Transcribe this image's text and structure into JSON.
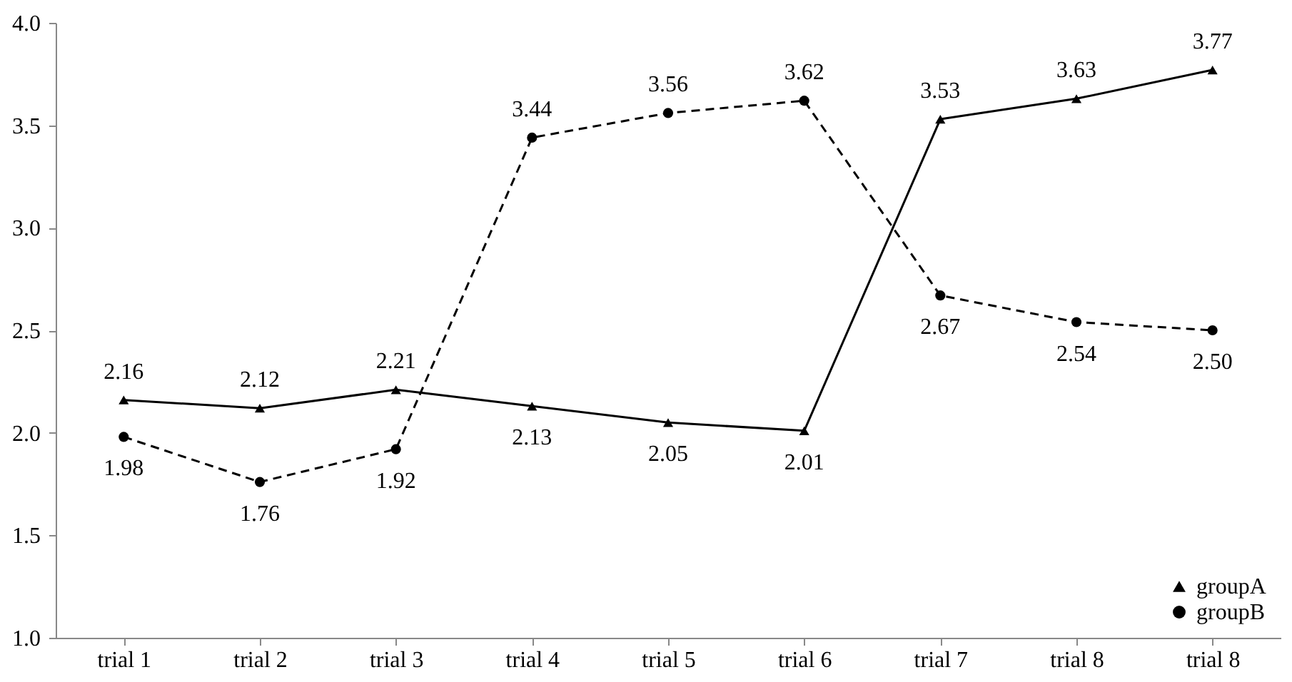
{
  "chart_data": {
    "type": "line",
    "categories": [
      "trial 1",
      "trial 2",
      "trial 3",
      "trial 4",
      "trial 5",
      "trial 6",
      "trial 7",
      "trial 8",
      "trial 8"
    ],
    "series": [
      {
        "name": "groupA",
        "color": "#000000",
        "marker": "triangle",
        "line_style": "solid",
        "values": [
          2.16,
          2.12,
          2.21,
          2.13,
          2.05,
          2.01,
          3.53,
          3.63,
          3.77
        ],
        "value_labels": [
          "2.16",
          "2.12",
          "2.21",
          "2.13",
          "2.05",
          "2.01",
          "3.53",
          "3.63",
          "3.77"
        ]
      },
      {
        "name": "groupB",
        "color": "#000000",
        "marker": "circle",
        "line_style": "dashed",
        "values": [
          1.98,
          1.76,
          1.92,
          3.44,
          3.56,
          3.62,
          2.67,
          2.54,
          2.5
        ],
        "value_labels": [
          "1.98",
          "1.76",
          "1.92",
          "3.44",
          "3.56",
          "3.62",
          "2.67",
          "2.54",
          "2.50"
        ]
      }
    ],
    "ylim": [
      1.0,
      4.0
    ],
    "yticks": [
      {
        "value": 1.0,
        "label": "1.0"
      },
      {
        "value": 1.5,
        "label": "1.5"
      },
      {
        "value": 2.0,
        "label": "2.0"
      },
      {
        "value": 2.5,
        "label": "2.5"
      },
      {
        "value": 3.0,
        "label": "3.0"
      },
      {
        "value": 3.5,
        "label": "3.5"
      },
      {
        "value": 4.0,
        "label": "4.0"
      }
    ],
    "grid": false,
    "legend": "bottom right"
  }
}
